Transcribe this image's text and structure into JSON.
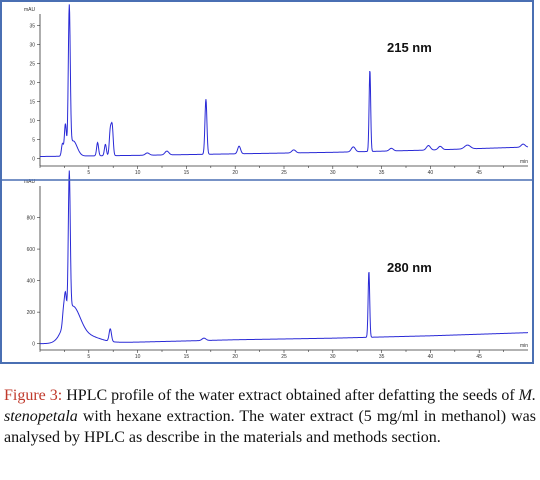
{
  "caption": {
    "label": "Figure 3:",
    "text_before_italic": " HPLC profile of the water extract obtained after defatting the seeds of ",
    "italic": "M. stenopetala",
    "text_after_italic": " with hexane extraction. The water extract (5 mg/ml in methanol) was analysed by HPLC as describe in the materials and methods section."
  },
  "colors": {
    "trace": "#2a2ad6",
    "frame": "#4a6fb3",
    "caption_label": "#c0392b"
  },
  "chart_data": [
    {
      "type": "line",
      "title": "215 nm",
      "ylabel": "mAU",
      "xlabel": "min",
      "xlim": [
        0,
        50
      ],
      "ylim": [
        -2,
        38
      ],
      "xticks": [
        0,
        2.5,
        5,
        7.5,
        10,
        12.5,
        15,
        17.5,
        20,
        22.5,
        25,
        27.5,
        30,
        32.5,
        35,
        37.5,
        40,
        42.5,
        45,
        47.5
      ],
      "xtick_labels": [
        "",
        "",
        "5",
        "",
        "10",
        "",
        "15",
        "",
        "20",
        "",
        "25",
        "",
        "30",
        "",
        "35",
        "",
        "40",
        "",
        "45",
        ""
      ],
      "yticks": [
        0,
        5,
        10,
        15,
        20,
        25,
        30,
        35
      ],
      "baseline": [
        [
          0,
          0.5
        ],
        [
          10,
          0.8
        ],
        [
          20,
          1.2
        ],
        [
          30,
          1.6
        ],
        [
          40,
          2.2
        ],
        [
          50,
          3.0
        ]
      ],
      "peaks": [
        {
          "rt": 2.3,
          "height": 3.2,
          "width": 0.1
        },
        {
          "rt": 2.6,
          "height": 8.0,
          "width": 0.1
        },
        {
          "rt": 3.0,
          "height": 37.5,
          "width": 0.1
        },
        {
          "rt": 3.4,
          "height": 4.0,
          "width": 0.4
        },
        {
          "rt": 5.9,
          "height": 3.5,
          "width": 0.1
        },
        {
          "rt": 6.7,
          "height": 3.0,
          "width": 0.1
        },
        {
          "rt": 7.2,
          "height": 6.5,
          "width": 0.1
        },
        {
          "rt": 7.4,
          "height": 7.5,
          "width": 0.1
        },
        {
          "rt": 11.0,
          "height": 0.6,
          "width": 0.2
        },
        {
          "rt": 13.0,
          "height": 1.0,
          "width": 0.2
        },
        {
          "rt": 17.0,
          "height": 14.5,
          "width": 0.1
        },
        {
          "rt": 20.4,
          "height": 2.0,
          "width": 0.15
        },
        {
          "rt": 26.0,
          "height": 0.8,
          "width": 0.2
        },
        {
          "rt": 32.1,
          "height": 1.3,
          "width": 0.2
        },
        {
          "rt": 33.8,
          "height": 21.5,
          "width": 0.08
        },
        {
          "rt": 36.0,
          "height": 0.7,
          "width": 0.2
        },
        {
          "rt": 39.8,
          "height": 1.2,
          "width": 0.2
        },
        {
          "rt": 41.0,
          "height": 0.9,
          "width": 0.2
        },
        {
          "rt": 43.8,
          "height": 1.0,
          "width": 0.3
        },
        {
          "rt": 49.5,
          "height": 0.8,
          "width": 0.2
        }
      ]
    },
    {
      "type": "line",
      "title": "280 nm",
      "ylabel": "mAU",
      "xlabel": "min",
      "xlim": [
        0,
        50
      ],
      "ylim": [
        -40,
        1000
      ],
      "xticks": [
        0,
        2.5,
        5,
        7.5,
        10,
        12.5,
        15,
        17.5,
        20,
        22.5,
        25,
        27.5,
        30,
        32.5,
        35,
        37.5,
        40,
        42.5,
        45,
        47.5
      ],
      "xtick_labels": [
        "",
        "",
        "5",
        "",
        "10",
        "",
        "15",
        "",
        "20",
        "",
        "25",
        "",
        "30",
        "",
        "35",
        "",
        "40",
        "",
        "45",
        ""
      ],
      "yticks": [
        0,
        200,
        400,
        600,
        800
      ],
      "baseline": [
        [
          0,
          0
        ],
        [
          10,
          10
        ],
        [
          20,
          25
        ],
        [
          30,
          35
        ],
        [
          40,
          50
        ],
        [
          50,
          70
        ]
      ],
      "peaks": [
        {
          "rt": 2.4,
          "height": 90,
          "width": 0.1
        },
        {
          "rt": 2.6,
          "height": 160,
          "width": 0.1
        },
        {
          "rt": 3.0,
          "height": 880,
          "width": 0.1
        },
        {
          "rt": 3.3,
          "height": 220,
          "width": 0.8
        },
        {
          "rt": 5.0,
          "height": 40,
          "width": 1.2
        },
        {
          "rt": 7.2,
          "height": 80,
          "width": 0.12
        },
        {
          "rt": 16.8,
          "height": 15,
          "width": 0.2
        },
        {
          "rt": 33.7,
          "height": 420,
          "width": 0.08
        }
      ]
    }
  ]
}
